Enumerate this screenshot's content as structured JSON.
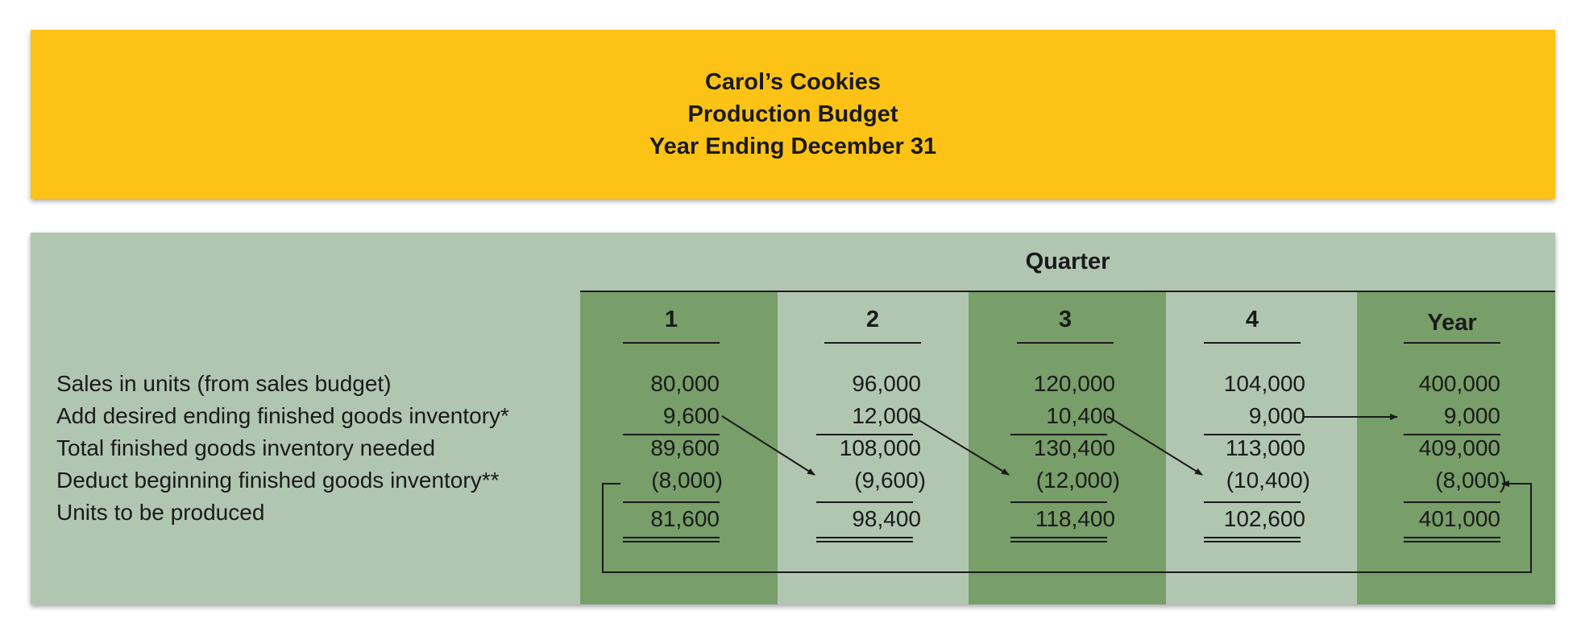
{
  "header": {
    "company": "Carol’s Cookies",
    "report": "Production Budget",
    "period": "Year Ending December 31"
  },
  "colors": {
    "header_bg": "#FCC216",
    "panel_bg": "#B1C6B1",
    "dark_column": "#789E69",
    "light_column": "#B1C6B1"
  },
  "table": {
    "group_label": "Quarter",
    "columns": [
      "1",
      "2",
      "3",
      "4",
      "Year"
    ],
    "rows": [
      {
        "label": "Sales in units (from sales budget)",
        "values": [
          "80,000",
          "96,000",
          "120,000",
          "104,000",
          "400,000"
        ]
      },
      {
        "label": "Add desired ending finished goods inventory*",
        "values": [
          "9,600",
          "12,000",
          "10,400",
          "9,000",
          "9,000"
        ]
      },
      {
        "label": "Total finished goods inventory needed",
        "values": [
          "89,600",
          "108,000",
          "130,400",
          "113,000",
          "409,000"
        ]
      },
      {
        "label": "Deduct beginning finished goods inventory**",
        "values": [
          "(8,000)",
          "(9,600)",
          "(12,000)",
          "(10,400)",
          "(8,000)"
        ]
      },
      {
        "label": "Units to be produced",
        "values": [
          "81,600",
          "98,400",
          "118,400",
          "102,600",
          "401,000"
        ]
      }
    ]
  }
}
